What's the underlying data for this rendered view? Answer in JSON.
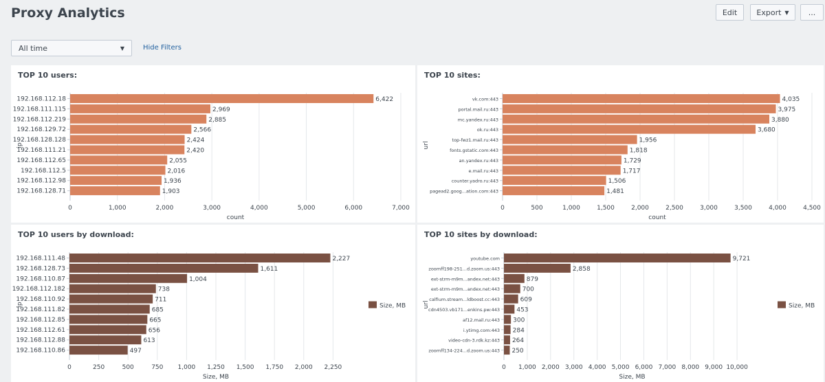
{
  "header": {
    "title": "Proxy Analytics",
    "edit_label": "Edit",
    "export_label": "Export",
    "more_label": "..."
  },
  "filters": {
    "time_range": "All time",
    "hide_filters_label": "Hide Filters"
  },
  "panels": [
    {
      "title": "TOP 10 users:"
    },
    {
      "title": "TOP 10 sites:"
    },
    {
      "title": "TOP 10 users by download:"
    },
    {
      "title": "TOP 10 sites by download:"
    }
  ],
  "chart_data": [
    {
      "type": "bar",
      "orientation": "horizontal",
      "title": "TOP 10 users:",
      "xlabel": "count",
      "ylabel": "ip",
      "categories": [
        "192.168.112.18",
        "192.168.111.115",
        "192.168.112.219",
        "192.168.129.72",
        "192.168.128.128",
        "192.168.111.21",
        "192.168.112.65",
        "192.168.112.5",
        "192.168.112.98",
        "192.168.128.71"
      ],
      "values": [
        6422,
        2969,
        2885,
        2566,
        2424,
        2420,
        2055,
        2016,
        1936,
        1903
      ],
      "value_labels": [
        "6,422",
        "2,969",
        "2,885",
        "2,566",
        "2,424",
        "2,420",
        "2,055",
        "2,016",
        "1,936",
        "1,903"
      ],
      "xlim": [
        0,
        7000
      ],
      "xticks": [
        "0",
        "1,000",
        "2,000",
        "3,000",
        "4,000",
        "5,000",
        "6,000",
        "7,000"
      ],
      "color": "#d8835e",
      "grid": true
    },
    {
      "type": "bar",
      "orientation": "horizontal",
      "title": "TOP 10 sites:",
      "xlabel": "count",
      "ylabel": "url",
      "categories": [
        "vk.com:443",
        "portal.mail.ru:443",
        "mc.yandex.ru:443",
        "ok.ru:443",
        "top-fwz1.mail.ru:443",
        "fonts.gstatic.com:443",
        "an.yandex.ru:443",
        "e.mail.ru:443",
        "counter.yadro.ru:443",
        "pagead2.goog...ation.com:443"
      ],
      "values": [
        4035,
        3975,
        3880,
        3680,
        1956,
        1818,
        1729,
        1717,
        1506,
        1481
      ],
      "value_labels": [
        "4,035",
        "3,975",
        "3,880",
        "3,680",
        "1,956",
        "1,818",
        "1,729",
        "1,717",
        "1,506",
        "1,481"
      ],
      "xlim": [
        0,
        4500
      ],
      "xticks": [
        "0",
        "500",
        "1,000",
        "1,500",
        "2,000",
        "2,500",
        "3,000",
        "3,500",
        "4,000",
        "4,500"
      ],
      "color": "#d8835e",
      "grid": true
    },
    {
      "type": "bar",
      "orientation": "horizontal",
      "title": "TOP 10 users by download:",
      "xlabel": "Size, MB",
      "ylabel": "ip",
      "categories": [
        "192.168.111.48",
        "192.168.128.73",
        "192.168.110.87",
        "192.168.112.182",
        "192.168.110.92",
        "192.168.111.82",
        "192.168.112.85",
        "192.168.112.61",
        "192.168.112.88",
        "192.168.110.86"
      ],
      "values": [
        2227,
        1611,
        1004,
        738,
        711,
        685,
        665,
        656,
        613,
        497
      ],
      "value_labels": [
        "2,227",
        "1,611",
        "1,004",
        "738",
        "711",
        "685",
        "665",
        "656",
        "613",
        "497"
      ],
      "xlim": [
        0,
        2500
      ],
      "xticks": [
        "0",
        "250",
        "500",
        "750",
        "1,000",
        "1,250",
        "1,500",
        "1,750",
        "2,000",
        "2,250"
      ],
      "legend": {
        "label": "Size, MB",
        "position": "right"
      },
      "color": "#7a5143",
      "grid": true
    },
    {
      "type": "bar",
      "orientation": "horizontal",
      "title": "TOP 10 sites by download:",
      "xlabel": "Size, MB",
      "ylabel": "url",
      "categories": [
        "youtube.com",
        "zoomff198-251...d.zoom.us:443",
        "ext-strm-m9m...andex.net:443",
        "ext-strm-m9m...andex.net:443",
        "calfium.stream...ldboost.cc:443",
        "cdn4503.vb171...enkins.pw:443",
        "af12.mail.ru:443",
        "i.ytimg.com:443",
        "video-cdn-3.rdk.kz:443",
        "zoomff134-224...d.zoom.us:443"
      ],
      "values": [
        9721,
        2858,
        879,
        700,
        609,
        453,
        300,
        284,
        264,
        250
      ],
      "value_labels": [
        "9,721",
        "2,858",
        "879",
        "700",
        "609",
        "453",
        "300",
        "284",
        "264",
        "250"
      ],
      "xlim": [
        0,
        11000
      ],
      "xticks": [
        "0",
        "1,000",
        "2,000",
        "3,000",
        "4,000",
        "5,000",
        "6,000",
        "7,000",
        "8,000",
        "9,000",
        "10,000"
      ],
      "legend": {
        "label": "Size, MB",
        "position": "right"
      },
      "color": "#7a5143",
      "grid": true
    }
  ]
}
